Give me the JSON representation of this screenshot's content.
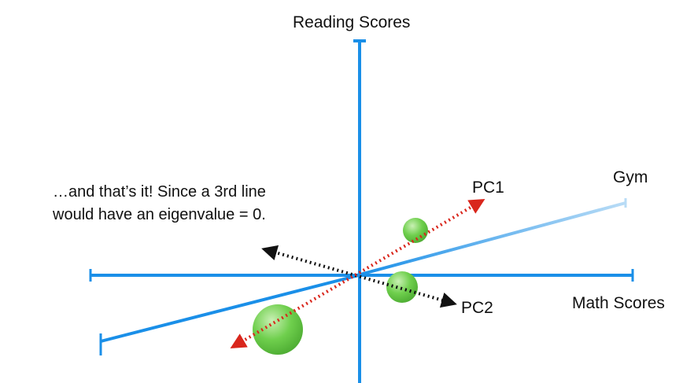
{
  "labels": {
    "y_axis": "Reading Scores",
    "x_axis": "Math Scores",
    "z_axis": "Gym",
    "pc1": "PC1",
    "pc2": "PC2"
  },
  "annotation": {
    "line1": "…and that’s it! Since a 3rd line",
    "line2": "would have an eigenvalue = 0."
  },
  "colors": {
    "axis": "#1a8fe8",
    "gym_axis_end": "#b9dcf6",
    "pc1": "#d9261c",
    "pc2": "#111111",
    "points": "#5cc33f",
    "points_highlight": "#c9f0b4"
  }
}
